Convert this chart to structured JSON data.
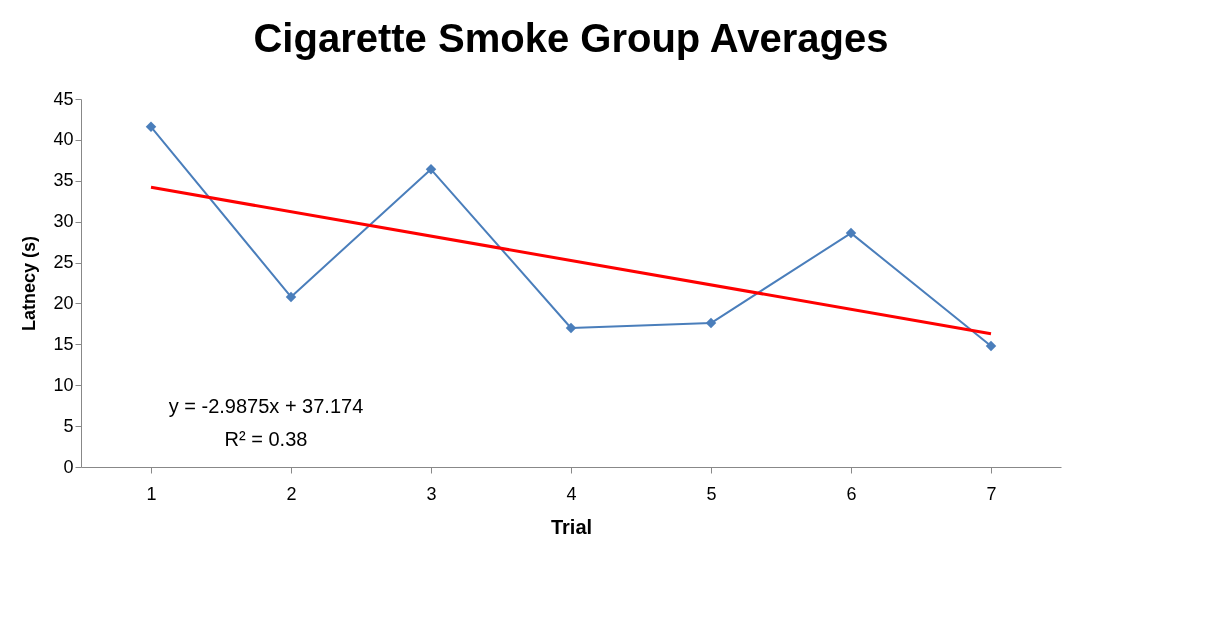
{
  "chart_data": {
    "type": "line",
    "title": "Cigarette Smoke Group Averages",
    "xlabel": "Trial",
    "ylabel": "Latnecy (s)",
    "categories": [
      "1",
      "2",
      "3",
      "4",
      "5",
      "6",
      "7"
    ],
    "series": [
      {
        "color": "#4a7ebb",
        "values": [
          41.6,
          20.8,
          36.4,
          17.0,
          17.6,
          28.6,
          14.8
        ],
        "marker": "diamond"
      },
      {
        "type": "line",
        "color": "#ff0000",
        "x": [
          "1",
          "7"
        ],
        "values": [
          34.2,
          16.3
        ],
        "marker": "none"
      }
    ],
    "ylim": [
      0,
      45
    ],
    "yticks": [
      0,
      5,
      10,
      15,
      20,
      25,
      30,
      35,
      40,
      45
    ],
    "grid": false,
    "line_style": "solid",
    "annotations": [
      "y = -2.9875x + 37.174",
      "R² = 0.38"
    ]
  }
}
